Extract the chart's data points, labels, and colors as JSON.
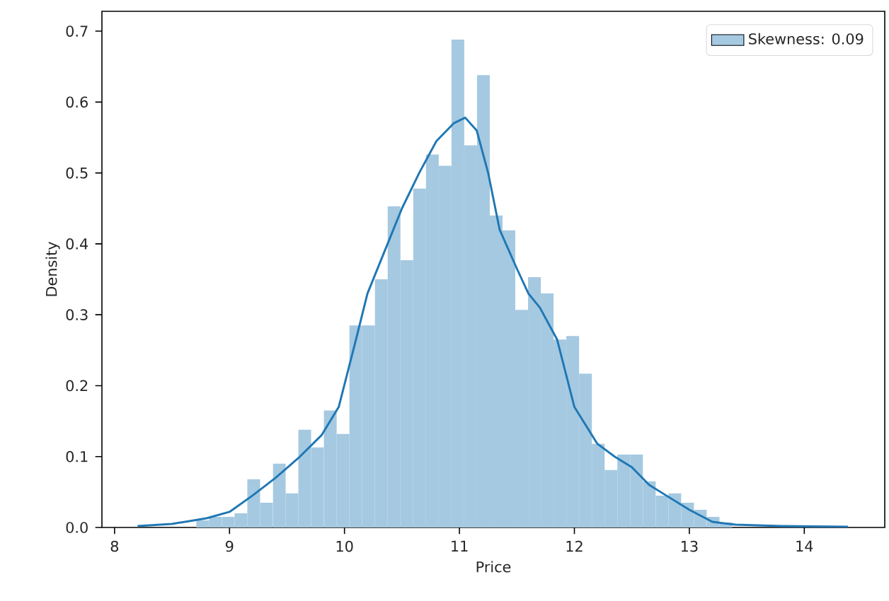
{
  "chart_data": {
    "type": "histogram",
    "xlabel": "Price",
    "ylabel": "Density",
    "xlim": [
      7.89,
      14.7
    ],
    "xticks": [
      8,
      9,
      10,
      11,
      12,
      13,
      14
    ],
    "ylim": [
      0,
      0.728
    ],
    "yticks": [
      {
        "value": 0,
        "label": "0.0"
      },
      {
        "value": 0.1,
        "label": "0.1"
      },
      {
        "value": 0.2,
        "label": "0.2"
      },
      {
        "value": 0.3,
        "label": "0.3"
      },
      {
        "value": 0.4,
        "label": "0.4"
      },
      {
        "value": 0.5,
        "label": "0.5"
      },
      {
        "value": 0.6,
        "label": "0.6"
      },
      {
        "value": 0.7,
        "label": "0.7"
      }
    ],
    "legend": "top right",
    "grid": false,
    "series": [
      {
        "name": "Skewness: 0.09",
        "color": "#a5c9e1",
        "bins": [
          8.711,
          8.822,
          8.933,
          9.044,
          9.155,
          9.266,
          9.377,
          9.488,
          9.599,
          9.71,
          9.821,
          9.932,
          10.043,
          10.154,
          10.265,
          10.376,
          10.487,
          10.598,
          10.709,
          10.82,
          10.931,
          11.042,
          11.153,
          11.264,
          11.375,
          11.486,
          11.597,
          11.708,
          11.819,
          11.93,
          12.041,
          12.152,
          12.263,
          12.374,
          12.485,
          12.596,
          12.707,
          12.818,
          12.929,
          13.04,
          13.151,
          13.262,
          13.373
        ],
        "values": [
          0.01,
          0.015,
          0.015,
          0.02,
          0.068,
          0.035,
          0.09,
          0.048,
          0.138,
          0.113,
          0.165,
          0.132,
          0.285,
          0.285,
          0.35,
          0.453,
          0.377,
          0.478,
          0.526,
          0.51,
          0.688,
          0.539,
          0.638,
          0.44,
          0.419,
          0.307,
          0.353,
          0.33,
          0.265,
          0.27,
          0.217,
          0.118,
          0.081,
          0.103,
          0.103,
          0.065,
          0.045,
          0.048,
          0.035,
          0.025,
          0.015,
          0.007
        ]
      },
      {
        "type": "line",
        "color": "#1f77b4",
        "x": [
          8.2,
          8.5,
          8.8,
          9.0,
          9.2,
          9.4,
          9.6,
          9.8,
          9.95,
          10.1,
          10.2,
          10.35,
          10.5,
          10.65,
          10.8,
          10.95,
          11.05,
          11.15,
          11.25,
          11.35,
          11.5,
          11.6,
          11.7,
          11.85,
          12.0,
          12.2,
          12.35,
          12.5,
          12.65,
          12.8,
          13.0,
          13.2,
          13.4,
          13.8,
          14.38
        ],
        "values": [
          0.002,
          0.005,
          0.013,
          0.022,
          0.045,
          0.07,
          0.098,
          0.13,
          0.17,
          0.265,
          0.33,
          0.39,
          0.45,
          0.5,
          0.545,
          0.57,
          0.578,
          0.56,
          0.5,
          0.42,
          0.365,
          0.33,
          0.31,
          0.265,
          0.17,
          0.118,
          0.1,
          0.085,
          0.06,
          0.045,
          0.025,
          0.008,
          0.004,
          0.002,
          0.001
        ]
      }
    ]
  }
}
